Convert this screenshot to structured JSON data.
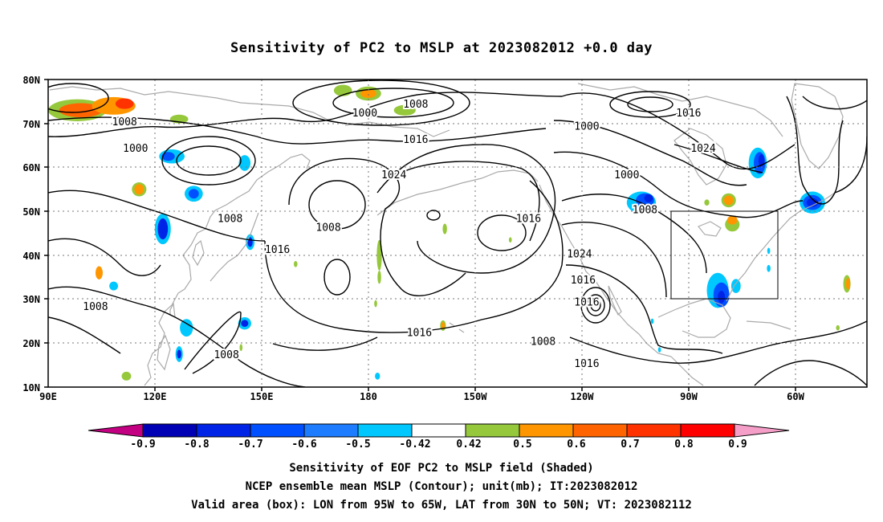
{
  "title": "Sensitivity of PC2 to MSLP at 2023082012 +0.0 day",
  "axes": {
    "y_ticks": [
      "80N",
      "70N",
      "60N",
      "50N",
      "40N",
      "30N",
      "20N",
      "10N"
    ],
    "x_ticks": [
      "90E",
      "120E",
      "150E",
      "180",
      "150W",
      "120W",
      "90W",
      "60W"
    ]
  },
  "colorbar": {
    "labels": [
      "-0.9",
      "-0.8",
      "-0.7",
      "-0.6",
      "-0.5",
      "-0.42",
      "0.42",
      "0.5",
      "0.6",
      "0.7",
      "0.8",
      "0.9"
    ],
    "colors": [
      "#c40082",
      "#0000b4",
      "#0024e6",
      "#0050ff",
      "#1e7cff",
      "#00c8ff",
      "#ffffff",
      "#96c83c",
      "#ff9600",
      "#ff6400",
      "#ff3200",
      "#ff0000",
      "#f59ec8"
    ]
  },
  "contour_labels": [
    {
      "text": "1008",
      "lon": 111,
      "lat": 70.2
    },
    {
      "text": "1000",
      "lon": 114,
      "lat": 64.2
    },
    {
      "text": "1000",
      "lon": 177,
      "lat": 72.2
    },
    {
      "text": "1008",
      "lon": 191,
      "lat": 74.2
    },
    {
      "text": "1016",
      "lon": 191,
      "lat": 66.2
    },
    {
      "text": "1024",
      "lon": 185,
      "lat": 58.2
    },
    {
      "text": "1000",
      "lon": 238,
      "lat": 69.2
    },
    {
      "text": "1016",
      "lon": 266,
      "lat": 72.2
    },
    {
      "text": "1024",
      "lon": 270,
      "lat": 64.2
    },
    {
      "text": "1000",
      "lon": 249,
      "lat": 58.2
    },
    {
      "text": "1008",
      "lon": 140,
      "lat": 48.2
    },
    {
      "text": "1008",
      "lon": 167,
      "lat": 46.2
    },
    {
      "text": "1016",
      "lon": 153,
      "lat": 41.2
    },
    {
      "text": "1016",
      "lon": 222,
      "lat": 48.2
    },
    {
      "text": "1024",
      "lon": 236,
      "lat": 40.2
    },
    {
      "text": "1016",
      "lon": 237,
      "lat": 34.2
    },
    {
      "text": "1016",
      "lon": 238,
      "lat": 29.2
    },
    {
      "text": "1008",
      "lon": 254,
      "lat": 50.2
    },
    {
      "text": "1008",
      "lon": 103,
      "lat": 28.2
    },
    {
      "text": "1016",
      "lon": 192,
      "lat": 22.2
    },
    {
      "text": "1008",
      "lon": 226,
      "lat": 20.2
    },
    {
      "text": "1008",
      "lon": 139,
      "lat": 17.2
    },
    {
      "text": "1016",
      "lon": 238,
      "lat": 15.2
    }
  ],
  "shading": [
    {
      "lon": 98,
      "lat": 73,
      "rx": 8,
      "ry": 2.5,
      "color": "#96c83c"
    },
    {
      "lon": 99,
      "lat": 73,
      "rx": 6,
      "ry": 1.6,
      "color": "#ff6400"
    },
    {
      "lon": 108,
      "lat": 74,
      "rx": 6,
      "ry": 2,
      "color": "#ff9600"
    },
    {
      "lon": 111,
      "lat": 74.5,
      "rx": 2.5,
      "ry": 1.2,
      "color": "#ff3200"
    },
    {
      "lon": 126,
      "lat": 71,
      "rx": 2.5,
      "ry": 1,
      "color": "#96c83c"
    },
    {
      "lon": 115,
      "lat": 55,
      "rx": 2,
      "ry": 1.6,
      "color": "#96c83c"
    },
    {
      "lon": 115,
      "lat": 55,
      "rx": 1.3,
      "ry": 1.2,
      "color": "#ff9600"
    },
    {
      "lon": 124,
      "lat": 62.5,
      "rx": 3.5,
      "ry": 1.6,
      "color": "#00c8ff"
    },
    {
      "lon": 123,
      "lat": 62.5,
      "rx": 1.8,
      "ry": 1,
      "color": "#0050ff"
    },
    {
      "lon": 130,
      "lat": 54,
      "rx": 2.5,
      "ry": 1.8,
      "color": "#00c8ff"
    },
    {
      "lon": 130,
      "lat": 54,
      "rx": 1.4,
      "ry": 1.1,
      "color": "#0050ff"
    },
    {
      "lon": 121.5,
      "lat": 46,
      "rx": 2.2,
      "ry": 3.5,
      "color": "#00c8ff"
    },
    {
      "lon": 121.5,
      "lat": 46,
      "rx": 1.4,
      "ry": 2.4,
      "color": "#0024e6"
    },
    {
      "lon": 144,
      "lat": 61,
      "rx": 1.6,
      "ry": 1.8,
      "color": "#00c8ff"
    },
    {
      "lon": 145.5,
      "lat": 43,
      "rx": 1.2,
      "ry": 1.8,
      "color": "#00c8ff"
    },
    {
      "lon": 145.5,
      "lat": 43,
      "rx": 0.7,
      "ry": 1.1,
      "color": "#0024e6"
    },
    {
      "lon": 104,
      "lat": 36,
      "rx": 1,
      "ry": 1.5,
      "color": "#ff9600"
    },
    {
      "lon": 108,
      "lat": 33,
      "rx": 1.2,
      "ry": 1,
      "color": "#00c8ff"
    },
    {
      "lon": 128,
      "lat": 23.5,
      "rx": 1.8,
      "ry": 2,
      "color": "#00c8ff"
    },
    {
      "lon": 126,
      "lat": 17.5,
      "rx": 1,
      "ry": 1.8,
      "color": "#00c8ff"
    },
    {
      "lon": 126,
      "lat": 17.5,
      "rx": 0.6,
      "ry": 1,
      "color": "#0024e6"
    },
    {
      "lon": 144,
      "lat": 24.5,
      "rx": 1.8,
      "ry": 1.4,
      "color": "#00c8ff"
    },
    {
      "lon": 144,
      "lat": 24.5,
      "rx": 1,
      "ry": 0.8,
      "color": "#0024e6"
    },
    {
      "lon": 111.5,
      "lat": 12.5,
      "rx": 1.3,
      "ry": 1,
      "color": "#96c83c"
    },
    {
      "lon": 143,
      "lat": 19,
      "rx": 0.4,
      "ry": 0.8,
      "color": "#96c83c"
    },
    {
      "lon": 171,
      "lat": 77.5,
      "rx": 2.5,
      "ry": 1.3,
      "color": "#96c83c"
    },
    {
      "lon": 178,
      "lat": 76.8,
      "rx": 3.5,
      "ry": 1.6,
      "color": "#96c83c"
    },
    {
      "lon": 178,
      "lat": 76.8,
      "rx": 2.2,
      "ry": 1,
      "color": "#ff9600"
    },
    {
      "lon": 188,
      "lat": 73,
      "rx": 3,
      "ry": 1.2,
      "color": "#96c83c"
    },
    {
      "lon": 181,
      "lat": 40,
      "rx": 0.7,
      "ry": 3.5,
      "color": "#96c83c"
    },
    {
      "lon": 181,
      "lat": 35,
      "rx": 0.5,
      "ry": 1.5,
      "color": "#96c83c"
    },
    {
      "lon": 180,
      "lat": 29,
      "rx": 0.4,
      "ry": 0.8,
      "color": "#96c83c"
    },
    {
      "lon": 198.5,
      "lat": 24,
      "rx": 0.8,
      "ry": 1.2,
      "color": "#96c83c"
    },
    {
      "lon": 198.5,
      "lat": 24,
      "rx": 0.5,
      "ry": 0.8,
      "color": "#ff9600"
    },
    {
      "lon": 180.5,
      "lat": 12.5,
      "rx": 0.7,
      "ry": 0.8,
      "color": "#00c8ff"
    },
    {
      "lon": 199,
      "lat": 46,
      "rx": 0.6,
      "ry": 1.2,
      "color": "#96c83c"
    },
    {
      "lon": 253,
      "lat": 52,
      "rx": 4,
      "ry": 2.5,
      "color": "#00c8ff"
    },
    {
      "lon": 254,
      "lat": 52.5,
      "rx": 2.5,
      "ry": 1.6,
      "color": "#0050ff"
    },
    {
      "lon": 255,
      "lat": 53,
      "rx": 1.2,
      "ry": 0.9,
      "color": "#0024e6"
    },
    {
      "lon": 277,
      "lat": 52.5,
      "rx": 2,
      "ry": 1.6,
      "color": "#96c83c"
    },
    {
      "lon": 277,
      "lat": 52.5,
      "rx": 1.3,
      "ry": 1.1,
      "color": "#ff9600"
    },
    {
      "lon": 278,
      "lat": 47,
      "rx": 2,
      "ry": 1.6,
      "color": "#96c83c"
    },
    {
      "lon": 278,
      "lat": 48,
      "rx": 1.4,
      "ry": 1,
      "color": "#ff9600"
    },
    {
      "lon": 274,
      "lat": 32,
      "rx": 3,
      "ry": 4,
      "color": "#00c8ff"
    },
    {
      "lon": 275,
      "lat": 31,
      "rx": 2.2,
      "ry": 2.8,
      "color": "#0050ff"
    },
    {
      "lon": 275,
      "lat": 30.5,
      "rx": 1,
      "ry": 1.4,
      "color": "#0024e6"
    },
    {
      "lon": 279,
      "lat": 33,
      "rx": 1.3,
      "ry": 1.6,
      "color": "#00c8ff"
    },
    {
      "lon": 285,
      "lat": 61,
      "rx": 2.5,
      "ry": 3.5,
      "color": "#00c8ff"
    },
    {
      "lon": 285.5,
      "lat": 61,
      "rx": 1.6,
      "ry": 2.5,
      "color": "#0050ff"
    },
    {
      "lon": 286,
      "lat": 61.5,
      "rx": 0.8,
      "ry": 1.5,
      "color": "#0024e6"
    },
    {
      "lon": 300,
      "lat": 52,
      "rx": 3.5,
      "ry": 2.5,
      "color": "#00c8ff"
    },
    {
      "lon": 300,
      "lat": 52,
      "rx": 2.6,
      "ry": 1.7,
      "color": "#0050ff"
    },
    {
      "lon": 300,
      "lat": 52,
      "rx": 1.6,
      "ry": 1,
      "color": "#0024e6"
    },
    {
      "lon": 309.5,
      "lat": 33.5,
      "rx": 1,
      "ry": 2,
      "color": "#96c83c"
    },
    {
      "lon": 309.8,
      "lat": 33.5,
      "rx": 0.6,
      "ry": 1.3,
      "color": "#ff9600"
    },
    {
      "lon": 288,
      "lat": 41,
      "rx": 0.4,
      "ry": 0.7,
      "color": "#00c8ff"
    },
    {
      "lon": 288,
      "lat": 37,
      "rx": 0.5,
      "ry": 0.8,
      "color": "#00c8ff"
    },
    {
      "lon": 256,
      "lat": 25,
      "rx": 0.4,
      "ry": 0.6,
      "color": "#00c8ff"
    },
    {
      "lon": 258,
      "lat": 18.5,
      "rx": 0.4,
      "ry": 0.6,
      "color": "#00c8ff"
    },
    {
      "lon": 271,
      "lat": 52,
      "rx": 0.7,
      "ry": 0.7,
      "color": "#96c83c"
    },
    {
      "lon": 217,
      "lat": 43.5,
      "rx": 0.4,
      "ry": 0.6,
      "color": "#96c83c"
    },
    {
      "lon": 158,
      "lat": 38,
      "rx": 0.5,
      "ry": 0.7,
      "color": "#96c83c"
    },
    {
      "lon": 307,
      "lat": 23.5,
      "rx": 0.5,
      "ry": 0.6,
      "color": "#96c83c"
    }
  ],
  "valid_box": {
    "lon_min": 265,
    "lon_max": 295,
    "lat_min": 30,
    "lat_max": 50
  },
  "captions": [
    "Sensitivity of EOF PC2 to MSLP field (Shaded)",
    "NCEP ensemble mean MSLP (Contour); unit(mb); IT:2023082012",
    "Valid area (box): LON from 95W to 65W, LAT from 30N to 50N; VT: 2023082112"
  ]
}
